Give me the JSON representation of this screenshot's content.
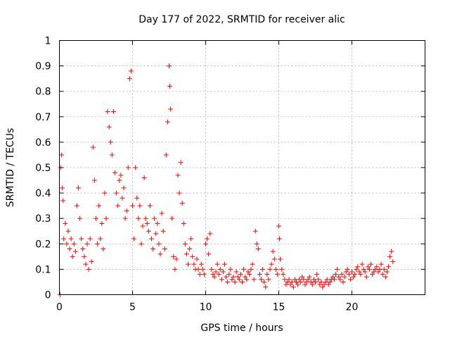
{
  "chart_data": {
    "type": "scatter",
    "title": "Day 177 of 2022, SRMTID for receiver alic",
    "xlabel": "GPS time / hours",
    "ylabel": "SRMTID / TECUs",
    "xlim": [
      0,
      25
    ],
    "ylim": [
      0,
      1
    ],
    "xticks": [
      0,
      5,
      10,
      15,
      20
    ],
    "xtick_labels": [
      "0",
      "5",
      "10",
      "15",
      "20"
    ],
    "yticks": [
      0,
      0.1,
      0.2,
      0.3,
      0.4,
      0.5,
      0.6,
      0.7,
      0.8,
      0.9,
      1
    ],
    "ytick_labels": [
      "0",
      "0.1",
      "0.2",
      "0.3",
      "0.4",
      "0.5",
      "0.6",
      "0.7",
      "0.8",
      "0.9",
      "1"
    ],
    "grid": true,
    "marker": "+",
    "color": "#ff0000",
    "series": [
      {
        "name": "SRMTID",
        "x": [
          0.05,
          0.1,
          0.15,
          0.2,
          0.25,
          0.3,
          0.4,
          0.5,
          0.6,
          0.7,
          0.8,
          0.9,
          1.0,
          1.1,
          1.2,
          1.3,
          1.4,
          1.5,
          1.6,
          1.7,
          1.8,
          1.9,
          2.0,
          2.1,
          2.2,
          2.3,
          2.4,
          2.5,
          2.6,
          2.7,
          2.8,
          2.9,
          3.0,
          3.1,
          3.2,
          3.3,
          3.4,
          3.5,
          3.6,
          3.7,
          3.8,
          3.9,
          4.0,
          4.1,
          4.2,
          4.3,
          4.4,
          4.5,
          4.6,
          4.7,
          4.8,
          4.9,
          5.0,
          5.1,
          5.2,
          5.3,
          5.4,
          5.5,
          5.6,
          5.7,
          5.8,
          5.9,
          6.0,
          6.1,
          6.2,
          6.3,
          6.4,
          6.5,
          6.6,
          6.7,
          6.8,
          6.9,
          7.0,
          7.1,
          7.2,
          7.3,
          7.4,
          7.5,
          7.55,
          7.6,
          7.7,
          7.8,
          7.9,
          8.0,
          8.1,
          8.2,
          8.3,
          8.4,
          8.5,
          8.6,
          8.7,
          8.8,
          8.9,
          9.0,
          9.1,
          9.2,
          9.3,
          9.4,
          9.5,
          9.6,
          9.7,
          9.8,
          9.9,
          10.0,
          10.1,
          10.2,
          10.3,
          10.4,
          10.5,
          10.6,
          10.7,
          10.8,
          10.9,
          11.0,
          11.1,
          11.2,
          11.3,
          11.4,
          11.5,
          11.6,
          11.7,
          11.8,
          11.9,
          12.0,
          12.1,
          12.2,
          12.3,
          12.4,
          12.5,
          12.6,
          12.7,
          12.8,
          12.9,
          13.0,
          13.1,
          13.2,
          13.3,
          13.4,
          13.5,
          13.6,
          13.7,
          13.8,
          13.9,
          14.0,
          14.1,
          14.2,
          14.3,
          14.4,
          14.5,
          14.6,
          14.7,
          14.8,
          14.9,
          15.0,
          15.05,
          15.1,
          15.2,
          15.3,
          15.4,
          15.5,
          15.6,
          15.7,
          15.8,
          15.9,
          16.0,
          16.1,
          16.2,
          16.3,
          16.4,
          16.5,
          16.6,
          16.7,
          16.8,
          16.9,
          17.0,
          17.1,
          17.2,
          17.3,
          17.4,
          17.5,
          17.6,
          17.7,
          17.8,
          17.9,
          18.0,
          18.1,
          18.2,
          18.3,
          18.4,
          18.5,
          18.6,
          18.7,
          18.8,
          18.9,
          19.0,
          19.1,
          19.2,
          19.3,
          19.4,
          19.5,
          19.6,
          19.7,
          19.8,
          19.9,
          20.0,
          20.1,
          20.2,
          20.3,
          20.4,
          20.5,
          20.6,
          20.7,
          20.8,
          20.9,
          21.0,
          21.1,
          21.2,
          21.3,
          21.4,
          21.5,
          21.6,
          21.7,
          21.8,
          21.9,
          22.0,
          22.1,
          22.2,
          22.3,
          22.4,
          22.5,
          22.6,
          22.7,
          22.8
        ],
        "y": [
          0.0,
          0.5,
          0.55,
          0.42,
          0.37,
          0.22,
          0.28,
          0.2,
          0.25,
          0.18,
          0.22,
          0.15,
          0.2,
          0.17,
          0.35,
          0.42,
          0.3,
          0.22,
          0.18,
          0.15,
          0.12,
          0.2,
          0.1,
          0.22,
          0.13,
          0.58,
          0.45,
          0.3,
          0.2,
          0.35,
          0.22,
          0.28,
          0.18,
          0.4,
          0.3,
          0.72,
          0.66,
          0.6,
          0.55,
          0.72,
          0.48,
          0.4,
          0.35,
          0.45,
          0.47,
          0.38,
          0.42,
          0.3,
          0.33,
          0.5,
          0.85,
          0.88,
          0.35,
          0.22,
          0.5,
          0.38,
          0.3,
          0.35,
          0.2,
          0.27,
          0.46,
          0.3,
          0.28,
          0.25,
          0.35,
          0.22,
          0.18,
          0.3,
          0.24,
          0.28,
          0.2,
          0.16,
          0.32,
          0.25,
          0.18,
          0.55,
          0.68,
          0.9,
          0.82,
          0.73,
          0.3,
          0.15,
          0.1,
          0.14,
          0.47,
          0.4,
          0.52,
          0.36,
          0.28,
          0.2,
          0.16,
          0.12,
          0.18,
          0.22,
          0.15,
          0.12,
          0.1,
          0.14,
          0.1,
          0.08,
          0.12,
          0.1,
          0.08,
          0.2,
          0.22,
          0.16,
          0.24,
          0.1,
          0.08,
          0.07,
          0.09,
          0.12,
          0.08,
          0.1,
          0.06,
          0.09,
          0.12,
          0.07,
          0.05,
          0.08,
          0.1,
          0.06,
          0.07,
          0.05,
          0.09,
          0.07,
          0.06,
          0.08,
          0.05,
          0.1,
          0.07,
          0.06,
          0.09,
          0.08,
          0.1,
          0.12,
          0.06,
          0.25,
          0.2,
          0.18,
          0.08,
          0.06,
          0.1,
          0.05,
          0.03,
          0.08,
          0.06,
          0.1,
          0.12,
          0.17,
          0.14,
          0.1,
          0.08,
          0.27,
          0.22,
          0.14,
          0.1,
          0.08,
          0.06,
          0.04,
          0.05,
          0.06,
          0.04,
          0.05,
          0.03,
          0.06,
          0.05,
          0.04,
          0.06,
          0.05,
          0.07,
          0.06,
          0.04,
          0.05,
          0.06,
          0.07,
          0.05,
          0.04,
          0.06,
          0.05,
          0.08,
          0.06,
          0.04,
          0.05,
          0.03,
          0.04,
          0.05,
          0.06,
          0.04,
          0.05,
          0.06,
          0.07,
          0.06,
          0.08,
          0.1,
          0.07,
          0.06,
          0.08,
          0.05,
          0.07,
          0.09,
          0.1,
          0.08,
          0.06,
          0.09,
          0.07,
          0.08,
          0.1,
          0.11,
          0.09,
          0.08,
          0.12,
          0.1,
          0.09,
          0.07,
          0.11,
          0.1,
          0.12,
          0.08,
          0.09,
          0.1,
          0.11,
          0.09,
          0.1,
          0.12,
          0.08,
          0.1,
          0.07,
          0.09,
          0.11,
          0.15,
          0.17,
          0.13
        ]
      }
    ]
  }
}
